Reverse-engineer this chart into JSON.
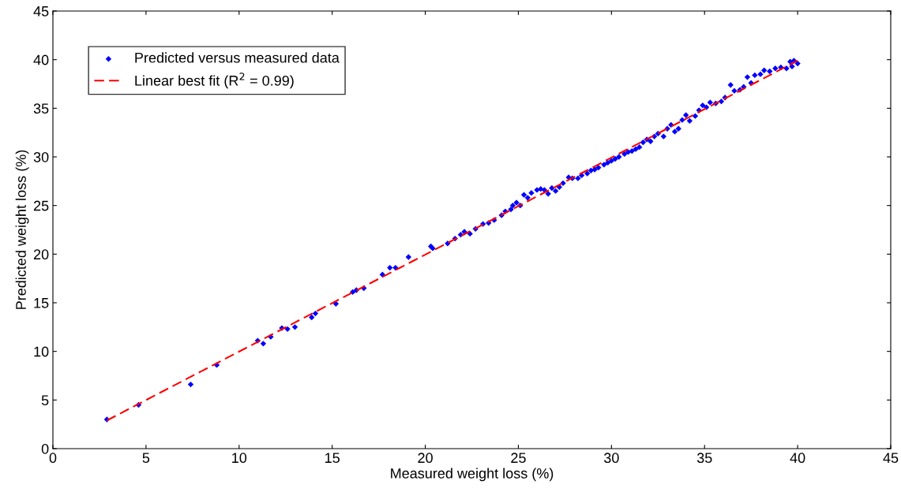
{
  "chart_data": {
    "type": "scatter",
    "xlabel": "Measured weight loss (%)",
    "ylabel": "Predicted weight loss (%)",
    "xlim": [
      0,
      45
    ],
    "ylim": [
      0,
      45
    ],
    "xticks": [
      0,
      5,
      10,
      15,
      20,
      25,
      30,
      35,
      40,
      45
    ],
    "yticks": [
      0,
      5,
      10,
      15,
      20,
      25,
      30,
      35,
      40,
      45
    ],
    "grid": false,
    "legend": "top left",
    "series": [
      {
        "name": "Predicted versus measured data",
        "color": "#0000ff",
        "marker": "diamond",
        "x": [
          2.9,
          4.6,
          7.4,
          8.8,
          11.0,
          11.3,
          11.7,
          12.3,
          12.6,
          13.0,
          13.9,
          14.1,
          15.2,
          16.1,
          16.3,
          16.7,
          17.7,
          18.1,
          18.4,
          19.1,
          20.3,
          20.4,
          21.2,
          21.6,
          21.9,
          22.1,
          22.4,
          22.7,
          23.1,
          23.4,
          23.7,
          24.1,
          24.3,
          24.6,
          24.7,
          24.9,
          25.1,
          25.3,
          25.5,
          25.7,
          26.0,
          26.2,
          26.4,
          26.6,
          26.8,
          27.0,
          27.2,
          27.4,
          27.7,
          27.9,
          28.2,
          28.4,
          28.7,
          28.9,
          29.1,
          29.3,
          29.6,
          29.8,
          30.0,
          30.2,
          30.4,
          30.7,
          30.9,
          31.1,
          31.3,
          31.5,
          31.7,
          31.9,
          32.1,
          32.3,
          32.5,
          32.8,
          33.0,
          33.2,
          33.4,
          33.6,
          33.8,
          34.0,
          34.2,
          34.5,
          34.7,
          34.9,
          35.1,
          35.3,
          35.6,
          35.9,
          36.1,
          36.4,
          36.6,
          36.9,
          37.1,
          37.3,
          37.5,
          37.7,
          38.0,
          38.2,
          38.5,
          38.8,
          39.1,
          39.4,
          39.6,
          39.8,
          40.0,
          39.7
        ],
        "values": [
          3.0,
          4.5,
          6.6,
          8.6,
          11.1,
          10.8,
          11.5,
          12.4,
          12.3,
          12.5,
          13.5,
          13.9,
          14.9,
          16.1,
          16.3,
          16.5,
          17.9,
          18.6,
          18.6,
          19.7,
          20.8,
          20.6,
          21.1,
          21.6,
          22.0,
          22.3,
          22.1,
          22.6,
          23.1,
          23.2,
          23.5,
          24.0,
          24.4,
          24.6,
          25.0,
          25.3,
          25.0,
          26.1,
          25.8,
          26.3,
          26.6,
          26.7,
          26.6,
          26.2,
          26.8,
          26.5,
          26.9,
          27.3,
          27.9,
          27.8,
          27.8,
          28.1,
          28.3,
          28.6,
          28.7,
          28.9,
          29.2,
          29.4,
          29.6,
          29.8,
          30.0,
          30.3,
          30.5,
          30.6,
          30.8,
          31.0,
          31.5,
          31.8,
          31.6,
          32.1,
          32.4,
          32.1,
          32.9,
          33.3,
          32.6,
          32.9,
          33.8,
          34.3,
          33.7,
          34.2,
          34.8,
          35.3,
          35.1,
          35.6,
          35.5,
          35.7,
          36.1,
          37.4,
          36.8,
          36.9,
          37.2,
          38.2,
          37.6,
          38.4,
          38.5,
          38.9,
          38.8,
          39.1,
          39.2,
          39.1,
          39.8,
          39.9,
          39.6,
          39.3
        ]
      },
      {
        "name": "Linear best fit (R$^{2}$ = 0.99)",
        "type": "line",
        "color": "#ff0000",
        "line_style": "dashed",
        "marker": "none",
        "x": [
          2.9,
          40.0
        ],
        "values": [
          2.9,
          39.9
        ]
      }
    ]
  }
}
